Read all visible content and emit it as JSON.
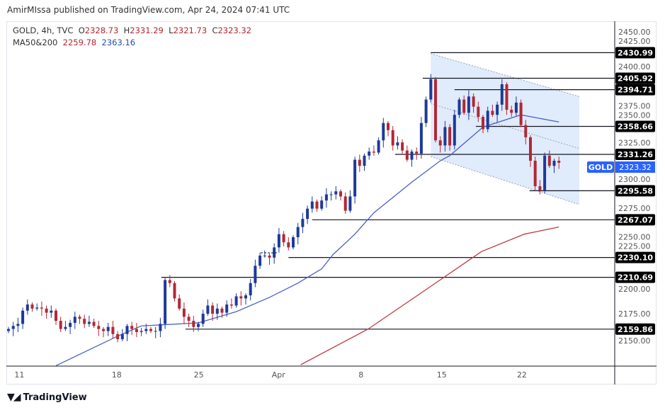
{
  "header": {
    "published": "AmirMIssa published on TradingView.com, Apr 24, 2024 07:41 UTC"
  },
  "legend": {
    "symbol": "GOLD, 4h, TVC",
    "open_label": "O",
    "open": "2328.73",
    "high_label": "H",
    "high": "2331.29",
    "low_label": "L",
    "low": "2321.73",
    "close_label": "C",
    "close": "2323.32",
    "ma_label": "MA50&200",
    "ma200_value": "2259.78",
    "ma50_value": "2363.16"
  },
  "colors": {
    "up": "#1c3a9a",
    "down": "#b22833",
    "ma50": "#4a62c8",
    "ma200": "#c0393f",
    "badge": "#2962ff",
    "channel": "#dbe7fb"
  },
  "price_badge": {
    "symbol": "GOLD",
    "price": "2323.32"
  },
  "footer": {
    "brand": "TradingView"
  },
  "chart_data": {
    "type": "candlestick",
    "title": "GOLD, 4h, TVC",
    "ylim": [
      2125,
      2465
    ],
    "y_ticks": [
      "2150.00",
      "2175.00",
      "2200.00",
      "2225.00",
      "2250.00",
      "2275.00",
      "2300.00",
      "2325.00",
      "2350.00",
      "2375.00",
      "2400.00",
      "2425.00",
      "2450.00"
    ],
    "x_ticks": [
      {
        "label": "11",
        "index": 2.3
      },
      {
        "label": "18",
        "index": 22.8
      },
      {
        "label": "25",
        "index": 40.1
      },
      {
        "label": "Apr",
        "index": 56.9
      },
      {
        "label": "8",
        "index": 74.3
      },
      {
        "label": "15",
        "index": 91.3
      },
      {
        "label": "22",
        "index": 108.2
      }
    ],
    "closes": [
      2160,
      2163,
      2165,
      2178,
      2184,
      2180,
      2181,
      2180,
      2176,
      2178,
      2168,
      2160,
      2162,
      2166,
      2172,
      2170,
      2165,
      2167,
      2163,
      2160,
      2158,
      2162,
      2155,
      2150,
      2155,
      2163,
      2160,
      2157,
      2158,
      2160,
      2158,
      2158,
      2165,
      2208,
      2205,
      2190,
      2180,
      2172,
      2168,
      2162,
      2165,
      2175,
      2183,
      2175,
      2180,
      2176,
      2184,
      2183,
      2192,
      2190,
      2193,
      2205,
      2222,
      2232,
      2232,
      2230,
      2240,
      2253,
      2245,
      2240,
      2250,
      2260,
      2268,
      2278,
      2285,
      2278,
      2286,
      2292,
      2292,
      2295,
      2290,
      2276,
      2290,
      2326,
      2320,
      2330,
      2334,
      2333,
      2345,
      2362,
      2355,
      2340,
      2343,
      2335,
      2326,
      2334,
      2332,
      2362,
      2385,
      2405,
      2345,
      2340,
      2358,
      2340,
      2370,
      2385,
      2372,
      2388,
      2378,
      2368,
      2356,
      2374,
      2370,
      2380,
      2400,
      2375,
      2372,
      2382,
      2360,
      2348,
      2325,
      2300,
      2296,
      2330,
      2320,
      2325,
      2323
    ],
    "ma50": [
      [
        10,
        2124
      ],
      [
        23,
        2153
      ],
      [
        28,
        2163
      ],
      [
        40,
        2166
      ],
      [
        48,
        2177
      ],
      [
        55,
        2191
      ],
      [
        61,
        2205
      ],
      [
        66,
        2219
      ],
      [
        68.4,
        2233
      ],
      [
        73,
        2253
      ],
      [
        77,
        2274
      ],
      [
        85,
        2304
      ],
      [
        91,
        2325
      ],
      [
        93,
        2330
      ],
      [
        100,
        2358
      ],
      [
        108,
        2370
      ],
      [
        116,
        2363
      ]
    ],
    "ma200": [
      [
        61.6,
        2125
      ],
      [
        75.8,
        2160
      ],
      [
        87.8,
        2198
      ],
      [
        99.7,
        2236
      ],
      [
        108.7,
        2253
      ],
      [
        116,
        2260
      ]
    ],
    "levels": [
      {
        "price": 2430.99,
        "label": "2430.99",
        "from": 89
      },
      {
        "price": 2405.92,
        "label": "2405.92",
        "from": 87.3
      },
      {
        "price": 2394.71,
        "label": "2394.71",
        "from": 94
      },
      {
        "price": 2358.66,
        "label": "2358.66",
        "from": 98.5
      },
      {
        "price": 2331.26,
        "label": "2331.26",
        "from": 81.5
      },
      {
        "price": 2295.58,
        "label": "2295.58",
        "from": 109.8
      },
      {
        "price": 2267.07,
        "label": "2267.07",
        "from": 64
      },
      {
        "price": 2230.1,
        "label": "2230.10",
        "from": 59
      },
      {
        "price": 2210.69,
        "label": "2210.69",
        "from": 32.2
      },
      {
        "price": 2159.86,
        "label": "2159.86",
        "from": 37.3
      }
    ],
    "channel": {
      "upper": [
        [
          89,
          2430
        ],
        [
          120.3,
          2388
        ]
      ],
      "middle": [
        [
          89,
          2381
        ],
        [
          120.3,
          2337
        ]
      ],
      "lower": [
        [
          89,
          2329
        ],
        [
          120.3,
          2282
        ]
      ]
    }
  }
}
